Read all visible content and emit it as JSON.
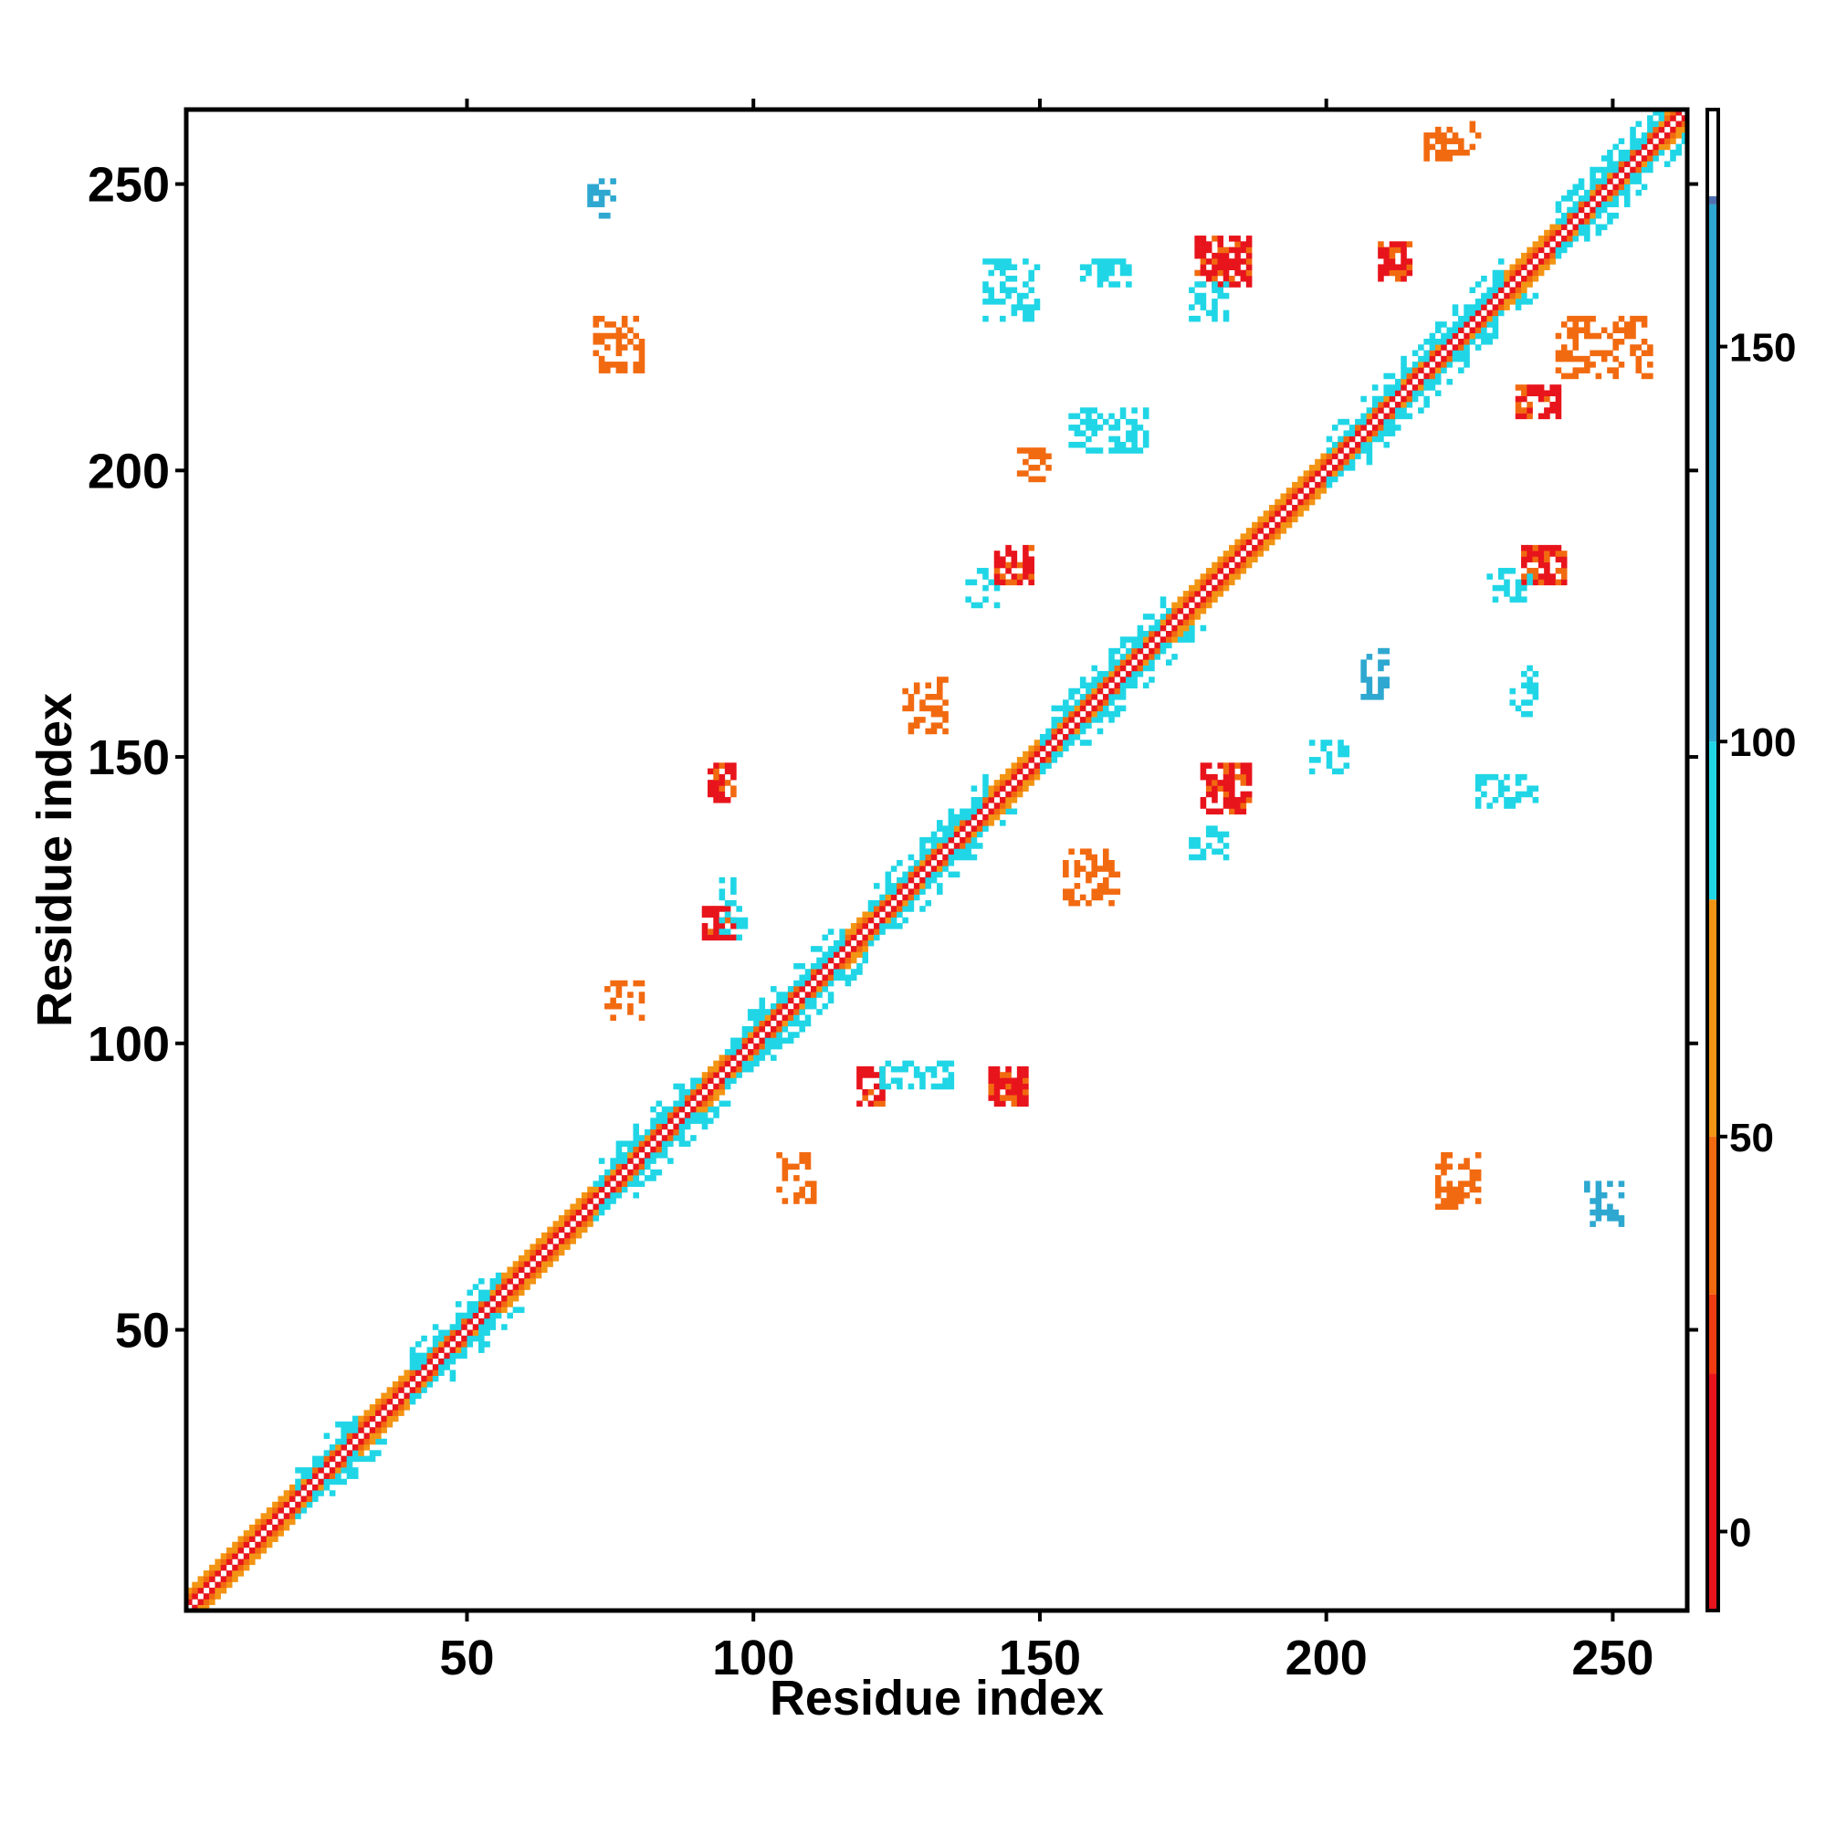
{
  "chart_data": {
    "type": "heatmap",
    "title": "",
    "xlabel": "Residue index",
    "ylabel": "Residue index",
    "xlim": [
      1,
      263
    ],
    "ylim": [
      1,
      263
    ],
    "x_ticks": [
      50,
      100,
      150,
      200,
      250
    ],
    "y_ticks": [
      50,
      100,
      150,
      200,
      250
    ],
    "colorbar": {
      "range": [
        -10,
        180
      ],
      "ticks": [
        0,
        50,
        100,
        150
      ],
      "bands": [
        {
          "from": -10,
          "to": 20,
          "color": "#e8141c"
        },
        {
          "from": 20,
          "to": 30,
          "color": "#f03c10"
        },
        {
          "from": 30,
          "to": 50,
          "color": "#f26a10"
        },
        {
          "from": 50,
          "to": 80,
          "color": "#f39514"
        },
        {
          "from": 80,
          "to": 100,
          "color": "#20d6e6"
        },
        {
          "from": 100,
          "to": 168,
          "color": "#2ea8d0"
        },
        {
          "from": 168,
          "to": 180,
          "color": "#4f6fae"
        }
      ]
    },
    "diagonal": {
      "from": 1,
      "to": 262,
      "half_width": 3
    },
    "diagonal_cyan_segments": [
      [
        20,
        30
      ],
      [
        40,
        55
      ],
      [
        72,
        90
      ],
      [
        95,
        115
      ],
      [
        120,
        140
      ],
      [
        150,
        172
      ],
      [
        200,
        215
      ],
      [
        215,
        230
      ],
      [
        240,
        258
      ]
    ],
    "off_diagonal_features": [
      {
        "x": [
          142,
          148
        ],
        "y": [
          180,
          186
        ],
        "value": 10
      },
      {
        "x": [
          137,
          142
        ],
        "y": [
          176,
          182
        ],
        "value": 95
      },
      {
        "x": [
          177,
          186
        ],
        "y": [
          232,
          240
        ],
        "value": 10
      },
      {
        "x": [
          176,
          182
        ],
        "y": [
          226,
          232
        ],
        "value": 95
      },
      {
        "x": [
          209,
          214
        ],
        "y": [
          233,
          239
        ],
        "value": 10
      },
      {
        "x": [
          217,
          226
        ],
        "y": [
          254,
          260
        ],
        "value": 40
      },
      {
        "x": [
          71,
          75
        ],
        "y": [
          244,
          250
        ],
        "value": 110
      },
      {
        "x": [
          72,
          80
        ],
        "y": [
          217,
          226
        ],
        "value": 40
      },
      {
        "x": [
          92,
          96
        ],
        "y": [
          142,
          148
        ],
        "value": 10
      },
      {
        "x": [
          91,
          96
        ],
        "y": [
          118,
          123
        ],
        "value": 10
      },
      {
        "x": [
          94,
          98
        ],
        "y": [
          118,
          128
        ],
        "value": 95
      },
      {
        "x": [
          118,
          122
        ],
        "y": [
          89,
          95
        ],
        "value": 10
      },
      {
        "x": [
          122,
          134
        ],
        "y": [
          92,
          96
        ],
        "value": 95
      },
      {
        "x": [
          141,
          147
        ],
        "y": [
          89,
          95
        ],
        "value": 10
      },
      {
        "x": [
          178,
          186
        ],
        "y": [
          140,
          148
        ],
        "value": 10
      },
      {
        "x": [
          176,
          182
        ],
        "y": [
          132,
          138
        ],
        "value": 95
      },
      {
        "x": [
          234,
          241
        ],
        "y": [
          180,
          186
        ],
        "value": 10
      },
      {
        "x": [
          228,
          235
        ],
        "y": [
          177,
          182
        ],
        "value": 95
      },
      {
        "x": [
          233,
          240
        ],
        "y": [
          209,
          214
        ],
        "value": 10
      },
      {
        "x": [
          240,
          256
        ],
        "y": [
          216,
          226
        ],
        "value": 40
      },
      {
        "x": [
          219,
          226
        ],
        "y": [
          71,
          80
        ],
        "value": 40
      },
      {
        "x": [
          245,
          251
        ],
        "y": [
          68,
          75
        ],
        "value": 110
      },
      {
        "x": [
          104,
          110
        ],
        "y": [
          72,
          80
        ],
        "value": 40
      },
      {
        "x": [
          74,
          80
        ],
        "y": [
          104,
          110
        ],
        "value": 40
      },
      {
        "x": [
          126,
          133
        ],
        "y": [
          154,
          163
        ],
        "value": 40
      },
      {
        "x": [
          154,
          163
        ],
        "y": [
          124,
          133
        ],
        "value": 40
      },
      {
        "x": [
          146,
          151
        ],
        "y": [
          197,
          203
        ],
        "value": 40
      },
      {
        "x": [
          197,
          203
        ],
        "y": [
          147,
          152
        ],
        "value": 95
      },
      {
        "x": [
          140,
          149
        ],
        "y": [
          226,
          236
        ],
        "value": 95
      },
      {
        "x": [
          157,
          165
        ],
        "y": [
          232,
          236
        ],
        "value": 95
      },
      {
        "x": [
          226,
          236
        ],
        "y": [
          141,
          146
        ],
        "value": 95
      },
      {
        "x": [
          232,
          236
        ],
        "y": [
          157,
          165
        ],
        "value": 95
      },
      {
        "x": [
          155,
          168
        ],
        "y": [
          203,
          210
        ],
        "value": 95
      },
      {
        "x": [
          206,
          210
        ],
        "y": [
          160,
          168
        ],
        "value": 110
      }
    ]
  },
  "colors": {
    "frame": "#000000",
    "background": "#ffffff"
  }
}
